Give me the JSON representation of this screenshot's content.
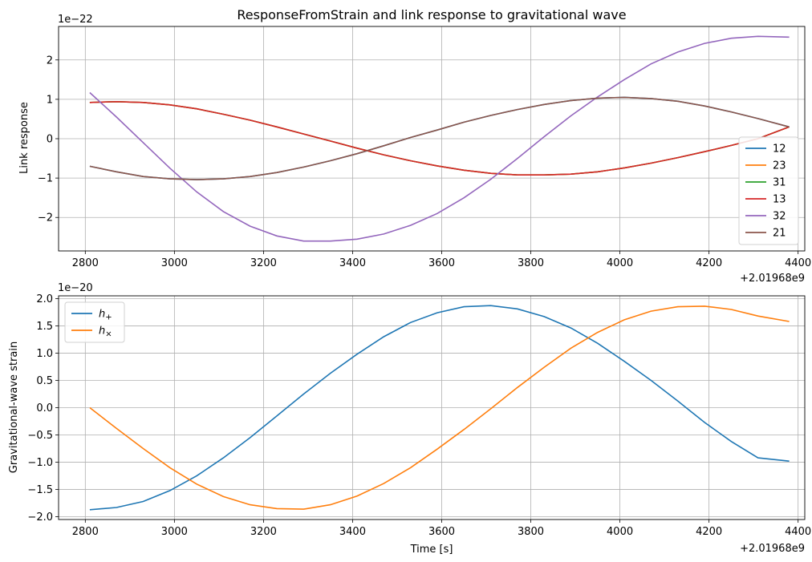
{
  "chart_data": [
    {
      "type": "line",
      "title": "ResponseFromStrain and link response to gravitational wave",
      "xlabel": "",
      "ylabel": "Link response",
      "y_scale_text": "1e−22",
      "x_offset_text": "+2.01968e9",
      "xlim": [
        2740,
        4415
      ],
      "ylim": [
        -2.85,
        2.85
      ],
      "xticks": [
        2800,
        3000,
        3200,
        3400,
        3600,
        3800,
        4000,
        4200,
        4400
      ],
      "xtick_labels": [
        "2800",
        "3000",
        "3200",
        "3400",
        "3600",
        "3800",
        "4000",
        "4200",
        "4400"
      ],
      "yticks": [
        -2,
        -1,
        0,
        1,
        2
      ],
      "ytick_labels": [
        "−2",
        "−1",
        "0",
        "1",
        "2"
      ],
      "grid": true,
      "legend_position": "lower-right",
      "x": [
        2810,
        2870,
        2930,
        2990,
        3050,
        3110,
        3170,
        3230,
        3290,
        3350,
        3410,
        3470,
        3530,
        3590,
        3650,
        3710,
        3770,
        3830,
        3890,
        3950,
        4010,
        4070,
        4130,
        4190,
        4250,
        4310,
        4380
      ],
      "series": [
        {
          "name": "12",
          "color": "#1f77b4",
          "values": [
            -0.7,
            -0.84,
            -0.96,
            -1.02,
            -1.04,
            -1.02,
            -0.96,
            -0.86,
            -0.72,
            -0.56,
            -0.38,
            -0.18,
            0.03,
            0.22,
            0.42,
            0.59,
            0.74,
            0.87,
            0.97,
            1.03,
            1.05,
            1.02,
            0.95,
            0.83,
            0.68,
            0.51,
            0.3
          ]
        },
        {
          "name": "23",
          "color": "#ff7f0e",
          "values": [
            0.92,
            0.94,
            0.92,
            0.86,
            0.76,
            0.62,
            0.47,
            0.3,
            0.12,
            -0.06,
            -0.24,
            -0.41,
            -0.56,
            -0.69,
            -0.8,
            -0.88,
            -0.92,
            -0.92,
            -0.9,
            -0.84,
            -0.74,
            -0.62,
            -0.48,
            -0.33,
            -0.17,
            0.0,
            0.3
          ]
        },
        {
          "name": "31",
          "color": "#2ca02c",
          "values": [
            0.92,
            0.94,
            0.92,
            0.86,
            0.76,
            0.62,
            0.47,
            0.3,
            0.12,
            -0.06,
            -0.24,
            -0.41,
            -0.56,
            -0.69,
            -0.8,
            -0.88,
            -0.92,
            -0.92,
            -0.9,
            -0.84,
            -0.74,
            -0.62,
            -0.48,
            -0.33,
            -0.17,
            0.0,
            0.3
          ]
        },
        {
          "name": "13",
          "color": "#d62728",
          "values": [
            0.92,
            0.94,
            0.92,
            0.86,
            0.76,
            0.62,
            0.47,
            0.3,
            0.12,
            -0.06,
            -0.24,
            -0.41,
            -0.56,
            -0.69,
            -0.8,
            -0.88,
            -0.92,
            -0.92,
            -0.9,
            -0.84,
            -0.74,
            -0.62,
            -0.48,
            -0.33,
            -0.17,
            0.0,
            0.3
          ]
        },
        {
          "name": "32",
          "color": "#9467bd",
          "values": [
            1.17,
            0.55,
            -0.1,
            -0.75,
            -1.35,
            -1.85,
            -2.22,
            -2.47,
            -2.6,
            -2.6,
            -2.55,
            -2.42,
            -2.2,
            -1.9,
            -1.5,
            -1.03,
            -0.5,
            0.05,
            0.58,
            1.06,
            1.5,
            1.9,
            2.2,
            2.42,
            2.55,
            2.6,
            2.58
          ]
        },
        {
          "name": "21",
          "color": "#8c564b",
          "values": [
            -0.7,
            -0.84,
            -0.96,
            -1.02,
            -1.04,
            -1.02,
            -0.96,
            -0.86,
            -0.72,
            -0.56,
            -0.38,
            -0.18,
            0.03,
            0.22,
            0.42,
            0.59,
            0.74,
            0.87,
            0.97,
            1.03,
            1.05,
            1.02,
            0.95,
            0.83,
            0.68,
            0.51,
            0.3
          ]
        }
      ]
    },
    {
      "type": "line",
      "title": "",
      "xlabel": "Time [s]",
      "ylabel": "Gravitational-wave strain",
      "y_scale_text": "1e−20",
      "x_offset_text": "+2.01968e9",
      "xlim": [
        2740,
        4415
      ],
      "ylim": [
        -2.05,
        2.05
      ],
      "xticks": [
        2800,
        3000,
        3200,
        3400,
        3600,
        3800,
        4000,
        4200,
        4400
      ],
      "xtick_labels": [
        "2800",
        "3000",
        "3200",
        "3400",
        "3600",
        "3800",
        "4000",
        "4200",
        "4400"
      ],
      "yticks": [
        -2.0,
        -1.5,
        -1.0,
        -0.5,
        0.0,
        0.5,
        1.0,
        1.5,
        2.0
      ],
      "ytick_labels": [
        "−2.0",
        "−1.5",
        "−1.0",
        "−0.5",
        "0.0",
        "0.5",
        "1.0",
        "1.5",
        "2.0"
      ],
      "grid": true,
      "legend_position": "upper-left",
      "x": [
        2810,
        2870,
        2930,
        2990,
        3050,
        3110,
        3170,
        3230,
        3290,
        3350,
        3410,
        3470,
        3530,
        3590,
        3650,
        3710,
        3770,
        3830,
        3890,
        3950,
        4010,
        4070,
        4130,
        4190,
        4250,
        4310,
        4380
      ],
      "series": [
        {
          "name": "h+",
          "legend_main": "h",
          "legend_sub": "+",
          "color": "#1f77b4",
          "values": [
            -1.87,
            -1.83,
            -1.72,
            -1.52,
            -1.25,
            -0.92,
            -0.55,
            -0.15,
            0.25,
            0.63,
            0.98,
            1.3,
            1.56,
            1.74,
            1.85,
            1.87,
            1.81,
            1.67,
            1.46,
            1.18,
            0.85,
            0.5,
            0.12,
            -0.27,
            -0.62,
            -0.92,
            -0.98
          ]
        },
        {
          "name": "h×",
          "legend_main": "h",
          "legend_sub": "×",
          "color": "#ff7f0e",
          "values": [
            0.0,
            -0.38,
            -0.75,
            -1.1,
            -1.4,
            -1.63,
            -1.78,
            -1.85,
            -1.86,
            -1.78,
            -1.62,
            -1.39,
            -1.1,
            -0.76,
            -0.4,
            -0.02,
            0.37,
            0.74,
            1.09,
            1.38,
            1.61,
            1.77,
            1.85,
            1.86,
            1.8,
            1.68,
            1.58
          ]
        }
      ]
    }
  ]
}
